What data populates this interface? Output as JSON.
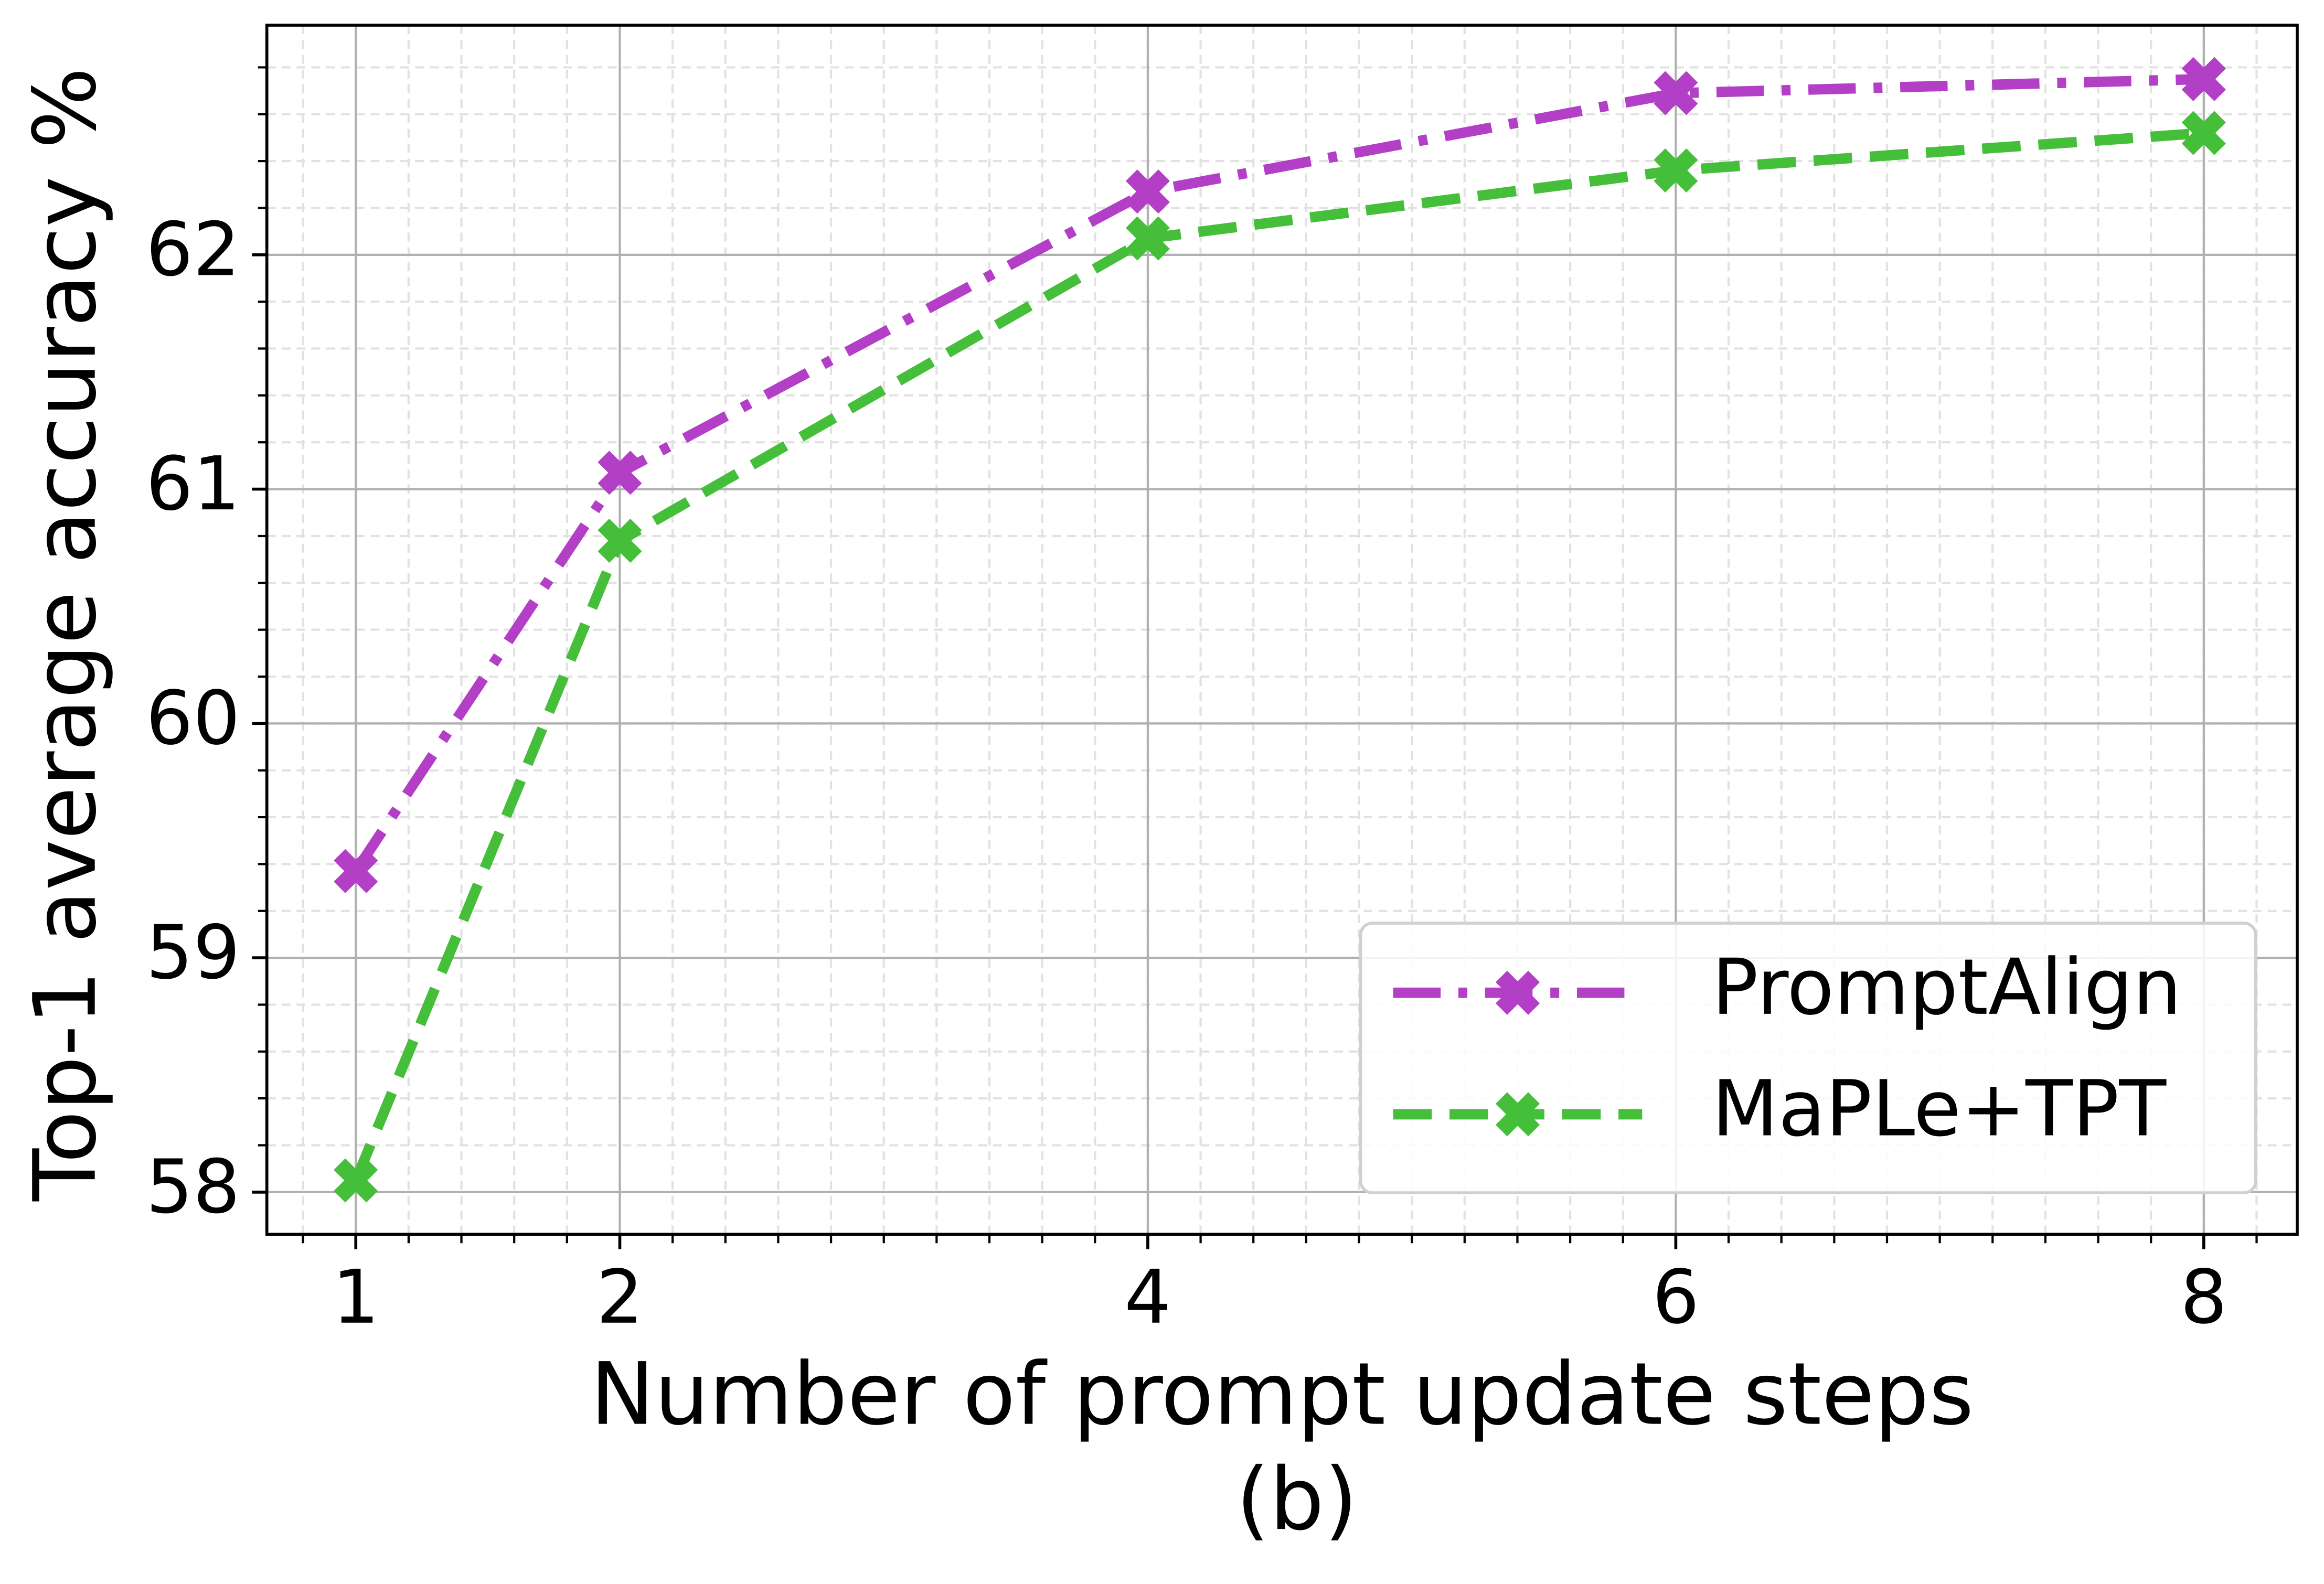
{
  "chart_data": {
    "type": "line",
    "x_label": "Number of prompt update steps",
    "caption": "(b)",
    "y_label": "Top-1 average accuracy %",
    "x": [
      1,
      2,
      4,
      6,
      8
    ],
    "series": [
      {
        "name": "PromptAlign",
        "color": "#b23fc6",
        "linestyle": "dashdot",
        "values": [
          59.37,
          61.07,
          62.27,
          62.69,
          62.75
        ]
      },
      {
        "name": "MaPLe+TPT",
        "color": "#45be3a",
        "linestyle": "dashed",
        "values": [
          58.05,
          60.78,
          62.07,
          62.36,
          62.52
        ]
      }
    ],
    "xlim": [
      0.663,
      8.354
    ],
    "ylim": [
      57.82,
      62.98
    ],
    "xticks": [
      1,
      2,
      4,
      6,
      8
    ],
    "yticks": [
      58,
      59,
      60,
      61,
      62
    ],
    "grid": true,
    "minor_grid": true,
    "legend": "lower right"
  }
}
